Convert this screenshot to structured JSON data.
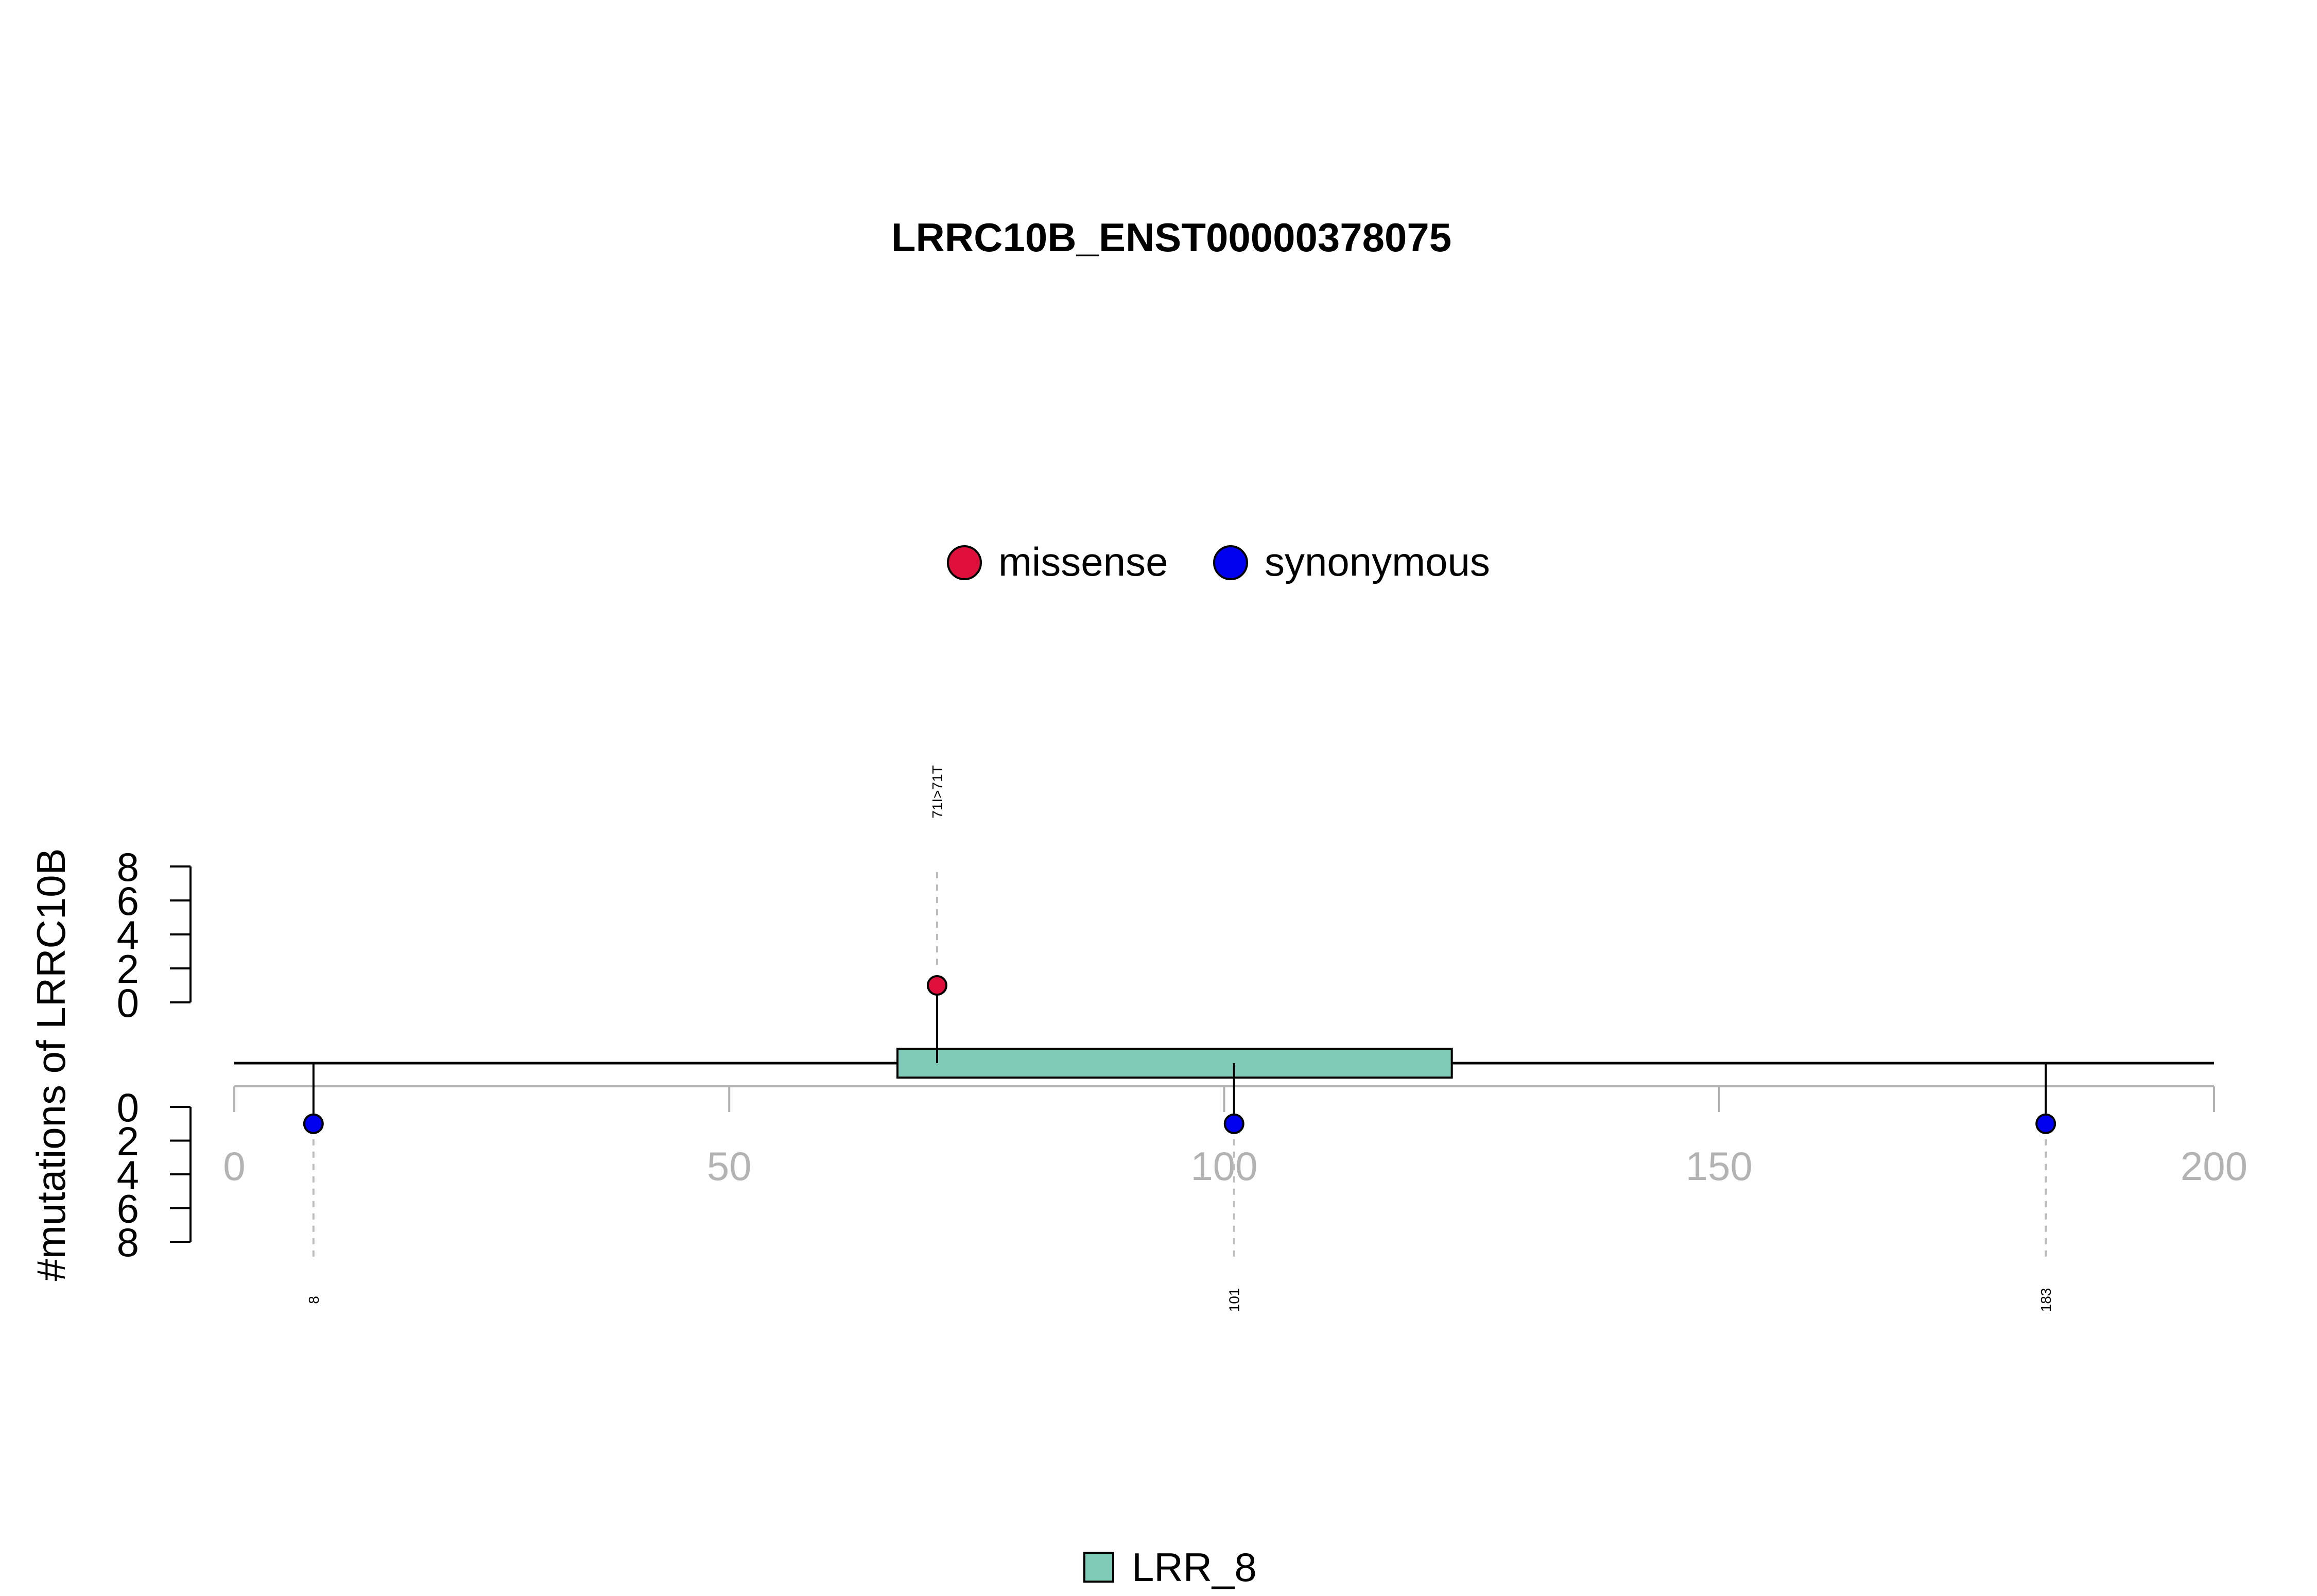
{
  "chart_data": {
    "type": "lollipop",
    "title": "LRRC10B_ENST00000378075",
    "ylabel": "#mutations of LRRC10B",
    "xlim": [
      0,
      200
    ],
    "x_ticks": [
      0,
      50,
      100,
      150,
      200
    ],
    "y_ticks_upper": [
      0,
      2,
      4,
      6,
      8
    ],
    "y_ticks_lower": [
      0,
      2,
      4,
      6,
      8
    ],
    "mutation_legend": [
      {
        "label": "missense",
        "color": "#e0103c"
      },
      {
        "label": "synonymous",
        "color": "#0000ee"
      }
    ],
    "mutations": [
      {
        "position": 8,
        "count": 1,
        "type": "synonymous",
        "label": "8",
        "side": "lower"
      },
      {
        "position": 71,
        "count": 1,
        "type": "missense",
        "label": "71I>71T",
        "side": "upper"
      },
      {
        "position": 101,
        "count": 1,
        "type": "synonymous",
        "label": "101",
        "side": "lower"
      },
      {
        "position": 183,
        "count": 1,
        "type": "synonymous",
        "label": "183",
        "side": "lower"
      }
    ],
    "domains": [
      {
        "name": "LRR_8",
        "start": 67,
        "end": 123,
        "color": "#7fcbb8"
      }
    ],
    "grid": false
  }
}
